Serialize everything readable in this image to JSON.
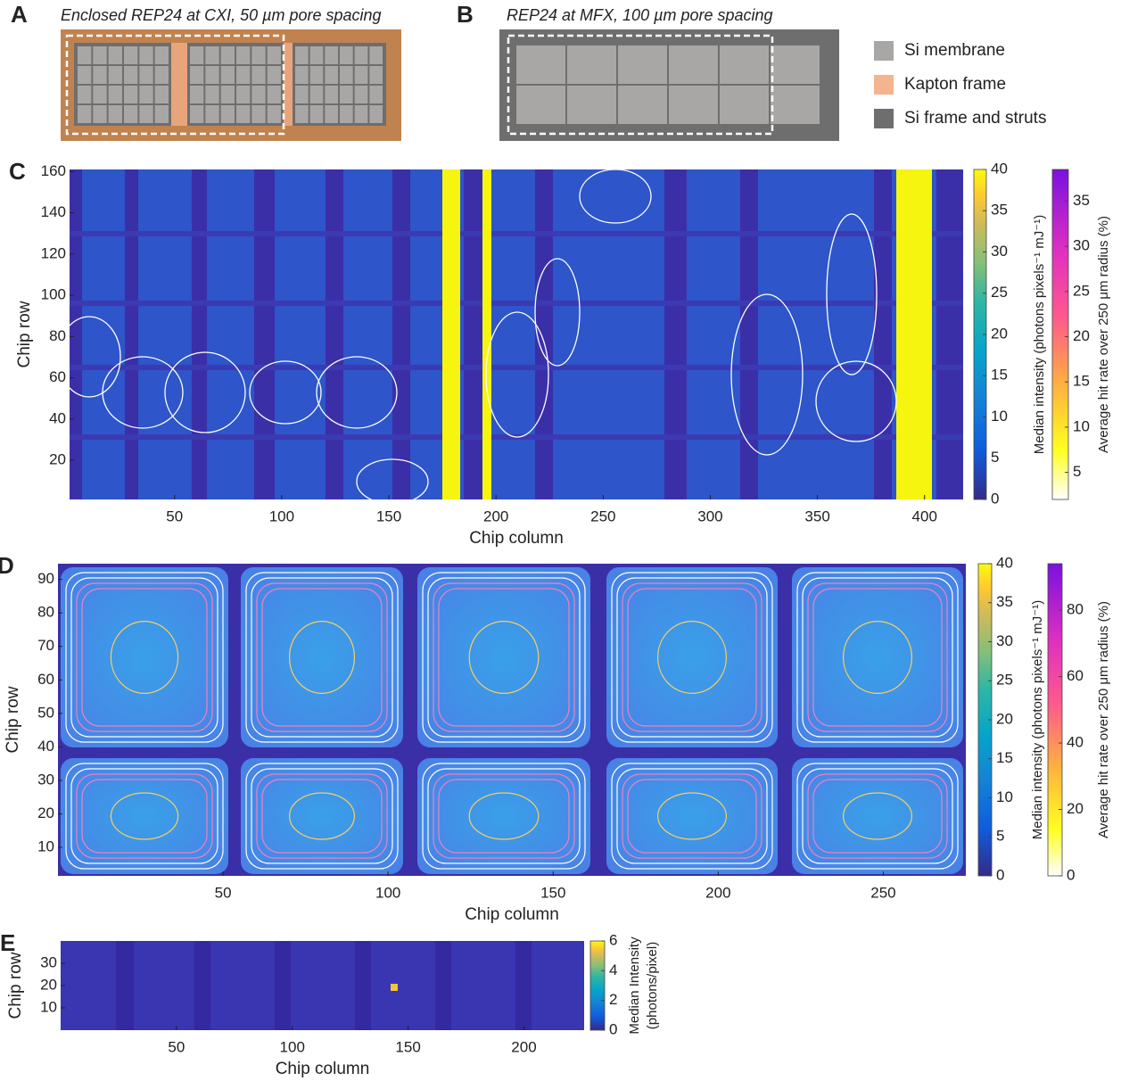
{
  "diagrams": {
    "a": {
      "letter": "A",
      "title": "Enclosed REP24 at CXI, 50 µm pore spacing"
    },
    "b": {
      "letter": "B",
      "title": "REP24 at MFX, 100 µm pore spacing"
    },
    "legend": [
      {
        "label": "Si membrane",
        "color": "#a9a6a6"
      },
      {
        "label": "Kapton frame",
        "color": "#f4b48e"
      },
      {
        "label": "Si frame and struts",
        "color": "#6f6e6e"
      }
    ]
  },
  "chart_data": [
    {
      "type": "heatmap",
      "letter": "C",
      "xlabel": "Chip column",
      "ylabel": "Chip row",
      "xlim": [
        1,
        418
      ],
      "ylim": [
        1,
        161
      ],
      "xticks": [
        50,
        100,
        150,
        200,
        250,
        300,
        350,
        400
      ],
      "yticks": [
        20,
        40,
        60,
        80,
        100,
        120,
        140,
        160
      ],
      "colorbars": [
        {
          "label": "Median intensity (photons pixels⁻¹ mJ⁻¹)",
          "colormap": "parula",
          "clim": [
            0,
            40
          ],
          "cticks": [
            0,
            5,
            10,
            15,
            20,
            25,
            30,
            35,
            40
          ]
        },
        {
          "label": "Average hit rate over 250 μm radius (%)",
          "colormap": "hitrate",
          "clim": [
            2,
            38.5
          ],
          "cticks": [
            5,
            10,
            15,
            20,
            25,
            30,
            35
          ]
        }
      ]
    },
    {
      "type": "heatmap",
      "letter": "D",
      "xlabel": "Chip column",
      "ylabel": "Chip row",
      "xlim": [
        0,
        275
      ],
      "ylim": [
        1.5,
        94.7
      ],
      "xticks": [
        50,
        100,
        150,
        200,
        250
      ],
      "yticks": [
        10,
        20,
        30,
        40,
        50,
        60,
        70,
        80,
        90
      ],
      "colorbars": [
        {
          "label": "Median intensity (photons pixels⁻¹ mJ⁻¹)",
          "colormap": "parula",
          "clim": [
            0,
            40
          ],
          "cticks": [
            0,
            5,
            10,
            15,
            20,
            25,
            30,
            35,
            40
          ]
        },
        {
          "label": "Average hit rate over 250 μm radius (%)",
          "colormap": "hitrate",
          "clim": [
            0,
            94
          ],
          "cticks": [
            0,
            20,
            40,
            60,
            80
          ]
        }
      ]
    },
    {
      "type": "heatmap",
      "letter": "E",
      "xlabel": "Chip column",
      "ylabel": "Chip row",
      "xlim": [
        0,
        226
      ],
      "ylim": [
        0,
        40
      ],
      "xticks": [
        50,
        100,
        150,
        200
      ],
      "yticks": [
        10,
        20,
        30
      ],
      "colorbars": [
        {
          "label": [
            "Median Intensity",
            "(photons/pixel)"
          ],
          "colormap": "parula",
          "clim": [
            0,
            6
          ],
          "cticks": [
            0,
            2,
            4,
            6
          ]
        }
      ]
    }
  ]
}
